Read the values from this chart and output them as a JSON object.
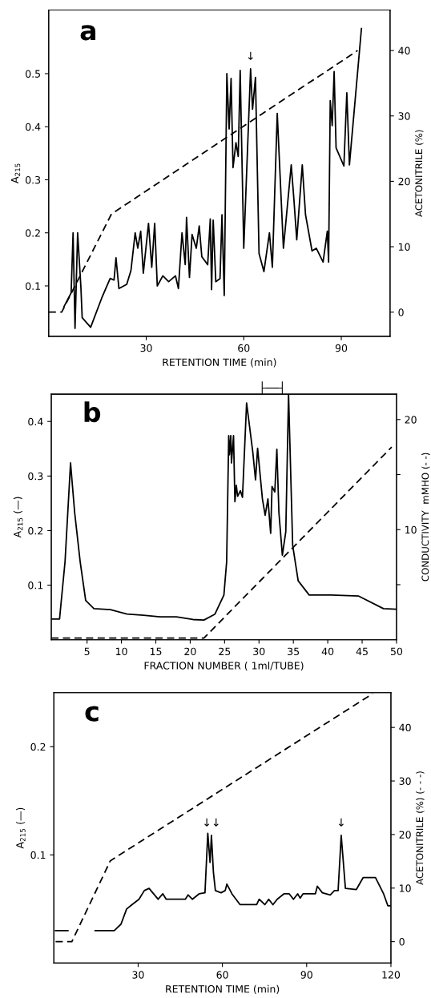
{
  "chart_data": [
    {
      "type": "line",
      "title": "a",
      "xlabel": "RETENTION TIME (min)",
      "ylabel": "A$_{215}$",
      "y2label": "ACETONITRILE (%)",
      "xlim": [
        0,
        105
      ],
      "xticks": [
        30,
        60,
        90
      ],
      "ylim": [
        0.005,
        0.62
      ],
      "yticks": [
        0.1,
        0.2,
        0.3,
        0.4,
        0.5
      ],
      "y2lim": [
        -3.7,
        46.2
      ],
      "y2ticks": [
        0,
        10,
        20,
        30,
        40
      ],
      "grid": false,
      "annotations": [
        {
          "text": "↓",
          "x": 62.1,
          "y": 0.509
        }
      ],
      "series": [
        {
          "color": "#000000",
          "line_style": "solid",
          "x": [
            4.7,
            6.9,
            7.5,
            8.1,
            8.9,
            9.9,
            10.3,
            12.9,
            16.3,
            18.9,
            20.1,
            20.7,
            21.6,
            24,
            25.3,
            26.6,
            27.4,
            28.3,
            29.1,
            30.7,
            31.7,
            32.6,
            33.4,
            35.1,
            36.9,
            39,
            39.9,
            41,
            42,
            42.4,
            43.3,
            44.1,
            45.4,
            46.3,
            47.1,
            48.9,
            49.7,
            50.1,
            50.6,
            51.4,
            52.7,
            53.3,
            54,
            54.8,
            55.5,
            56.1,
            56.7,
            57.6,
            58.3,
            58.9,
            60,
            62.1,
            62.7,
            63.6,
            64.7,
            66.2,
            67.9,
            68.8,
            70.3,
            72.2,
            74.6,
            75.4,
            76.3,
            78,
            79,
            81,
            82.3,
            84.4,
            85.7,
            86.1,
            86.6,
            87.2,
            87.8,
            88.4,
            90.8,
            91.7,
            92.5,
            96.2
          ],
          "values": [
            0.061,
            0.087,
            0.2,
            0.02,
            0.2,
            0.098,
            0.04,
            0.022,
            0.077,
            0.114,
            0.111,
            0.153,
            0.095,
            0.103,
            0.129,
            0.2,
            0.171,
            0.203,
            0.124,
            0.218,
            0.135,
            0.218,
            0.1,
            0.119,
            0.108,
            0.119,
            0.095,
            0.2,
            0.14,
            0.229,
            0.116,
            0.197,
            0.171,
            0.213,
            0.155,
            0.14,
            0.226,
            0.093,
            0.224,
            0.108,
            0.114,
            0.234,
            0.082,
            0.5,
            0.396,
            0.491,
            0.323,
            0.37,
            0.344,
            0.506,
            0.171,
            0.509,
            0.433,
            0.493,
            0.161,
            0.127,
            0.2,
            0.135,
            0.425,
            0.171,
            0.328,
            0.265,
            0.187,
            0.328,
            0.234,
            0.166,
            0.171,
            0.145,
            0.203,
            0.145,
            0.449,
            0.402,
            0.504,
            0.36,
            0.326,
            0.464,
            0.328,
            0.585
          ]
        },
        {
          "color": "#000000",
          "line_style": "dashed",
          "axis": "y2",
          "x": [
            0,
            4,
            19.3,
            95
          ],
          "values": [
            0,
            0,
            15,
            40
          ]
        }
      ]
    },
    {
      "type": "line",
      "title": "b",
      "xlabel": "FRACTION NUMBER ( 1ml/TUBE)",
      "ylabel": "A$_{215}$ (—)",
      "y2label": "CONDUCTIVITY  mMHO (- -)",
      "xlim": [
        -0.2,
        50
      ],
      "xticks": [
        5,
        10,
        15,
        20,
        25,
        30,
        35,
        40,
        45,
        50
      ],
      "ylim": [
        0,
        0.45
      ],
      "yticks": [
        0.1,
        0.2,
        0.3,
        0.4
      ],
      "y2lim": [
        0,
        22.3
      ],
      "y2ticks": [
        {
          "value": 5,
          "label": null
        },
        10,
        {
          "value": 15,
          "label": null
        },
        20
      ],
      "grid": false,
      "annotations": [
        "├──┤"
      ],
      "series": [
        {
          "color": "#000000",
          "line_style": "solid",
          "x": [
            -0.2,
            1,
            1.8,
            2.6,
            3.2,
            4,
            4.8,
            6,
            8.4,
            10.8,
            13.2,
            15.6,
            18,
            20.4,
            22,
            23.6,
            24.9,
            25.3,
            25.6,
            25.7,
            25.9,
            26,
            26.3,
            26.5,
            26.7,
            26.9,
            27.3,
            27.6,
            28.2,
            29.1,
            29.5,
            29.8,
            30.5,
            30.9,
            31.3,
            31.7,
            31.9,
            32.3,
            32.6,
            32.9,
            33.4,
            33.9,
            34.3,
            34.9,
            35.7,
            37.3,
            40.5,
            44.5,
            48.1,
            50
          ],
          "values": [
            0.038,
            0.038,
            0.143,
            0.324,
            0.233,
            0.143,
            0.072,
            0.057,
            0.055,
            0.047,
            0.045,
            0.042,
            0.042,
            0.037,
            0.036,
            0.047,
            0.082,
            0.143,
            0.374,
            0.339,
            0.374,
            0.324,
            0.374,
            0.253,
            0.283,
            0.263,
            0.273,
            0.261,
            0.434,
            0.344,
            0.293,
            0.351,
            0.258,
            0.228,
            0.258,
            0.195,
            0.281,
            0.271,
            0.349,
            0.233,
            0.155,
            0.198,
            0.45,
            0.173,
            0.108,
            0.082,
            0.082,
            0.08,
            0.057,
            0.056
          ]
        },
        {
          "color": "#000000",
          "line_style": "dashed",
          "axis": "y2",
          "x": [
            -0.2,
            22,
            49.3
          ],
          "values": [
            0.15,
            0.15,
            17.5
          ]
        }
      ]
    },
    {
      "type": "line",
      "title": "c",
      "xlabel": "RETENTION TIME (min)",
      "ylabel": "A$_{215}$ (—)",
      "y2label": "ACETONITRILE (%) (- - -)",
      "xlim": [
        0,
        120
      ],
      "xticks": [
        30,
        60,
        90,
        120
      ],
      "ylim": [
        0,
        0.25
      ],
      "yticks": [
        0.1,
        0.2
      ],
      "y2lim": [
        -4,
        46.5
      ],
      "y2ticks": [
        0,
        10,
        20,
        30,
        40
      ],
      "grid": false,
      "annotations": [
        {
          "text": "↓↓",
          "x": 56.1,
          "y": 0.118
        },
        {
          "text": "↓",
          "x": 102.3,
          "y": 0.118
        }
      ],
      "series": [
        {
          "color": "#000000",
          "line_style": "solid",
          "x": [
            0.6,
            5,
            6.1,
            6.7,
            7.4,
            8.4,
            9.6,
            12.8,
            14.7,
            21.5,
            23.9,
            25.9,
            27.8,
            30.3,
            32.2,
            33.9,
            37.1,
            38.8,
            40,
            46.8,
            47.8,
            49.3,
            51.7,
            53.8,
            54.8,
            55.6,
            56.1,
            56.8,
            57.5,
            59.5,
            61,
            61.6,
            63.4,
            66.3,
            72.2,
            73.1,
            75.1,
            76.5,
            78,
            79.5,
            81.9,
            83.8,
            85.3,
            86.8,
            87.7,
            88.7,
            93.1,
            93.8,
            95.6,
            98.4,
            99.9,
            101.2,
            102.3,
            103.8,
            107.7,
            110.1,
            114.5,
            117.4,
            118.9,
            119.7
          ],
          "values": [
            0.03,
            0.03,
            null,
            null,
            null,
            null,
            null,
            null,
            0.03,
            0.03,
            0.036,
            0.05,
            0.054,
            0.059,
            0.067,
            0.069,
            0.059,
            0.064,
            0.059,
            0.059,
            0.063,
            0.059,
            0.064,
            0.065,
            0.12,
            0.093,
            0.118,
            0.084,
            0.067,
            0.065,
            0.067,
            0.073,
            0.064,
            0.054,
            0.054,
            0.059,
            0.054,
            0.059,
            0.054,
            0.059,
            0.064,
            0.064,
            0.059,
            0.064,
            0.06,
            0.064,
            0.064,
            0.071,
            0.065,
            0.063,
            0.067,
            0.067,
            0.118,
            0.069,
            0.068,
            0.079,
            0.079,
            0.064,
            0.053,
            0.053
          ]
        },
        {
          "color": "#000000",
          "line_style": "dashed",
          "axis": "y2",
          "x": [
            0.6,
            6.4,
            20.1,
            113.5
          ],
          "values": [
            0,
            0,
            15.1,
            46.3
          ]
        }
      ]
    }
  ]
}
